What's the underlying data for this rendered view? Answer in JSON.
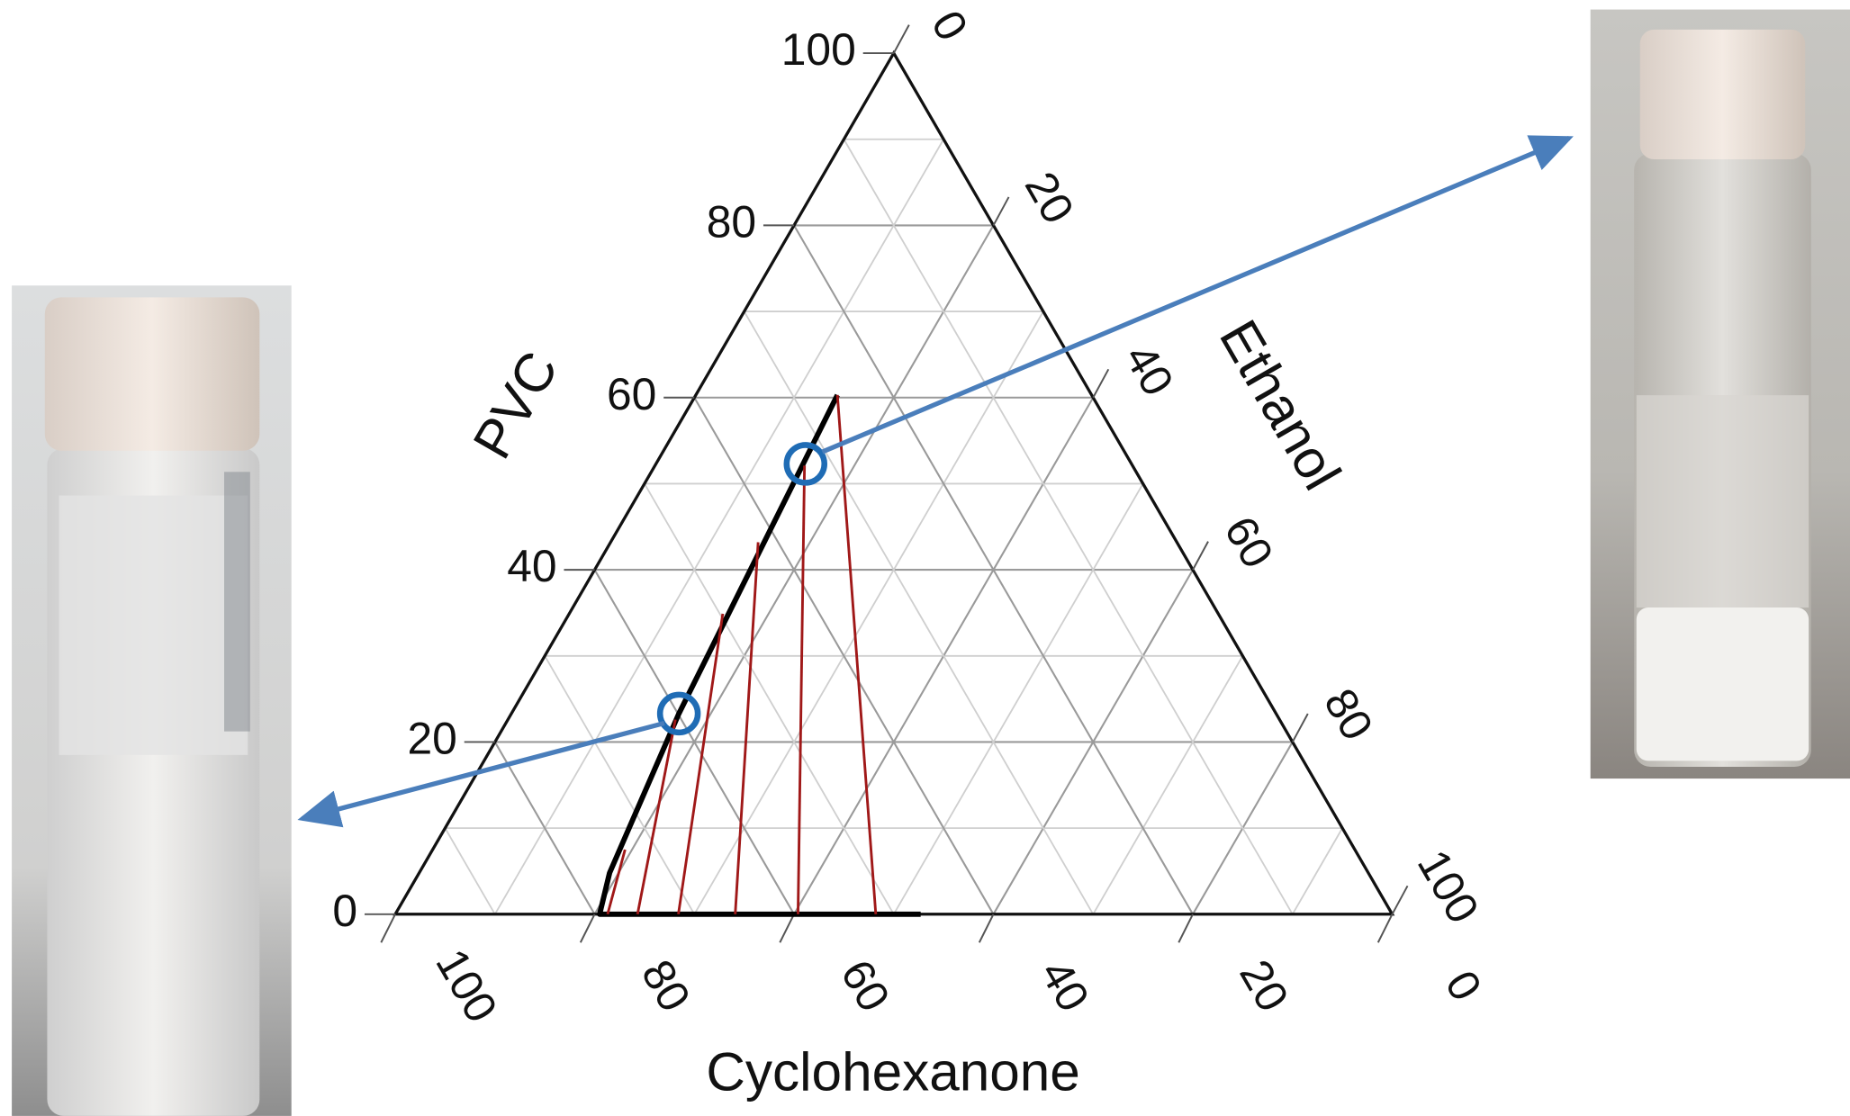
{
  "chart_data": {
    "type": "ternary",
    "grid": true,
    "axes": {
      "pvc": {
        "title": "PVC",
        "lim": [
          0,
          100
        ],
        "ticks": [
          0,
          20,
          40,
          60,
          80,
          100
        ]
      },
      "ethanol": {
        "title": "Ethanol",
        "lim": [
          0,
          100
        ],
        "ticks": [
          0,
          20,
          40,
          60,
          80,
          100
        ]
      },
      "cyclohexanone": {
        "title": "Cyclohexanone",
        "lim": [
          0,
          100
        ],
        "ticks": [
          100,
          80,
          60,
          40,
          20,
          0
        ]
      }
    },
    "series": [
      {
        "color": "#000000",
        "pvc": [
          0,
          0,
          4.8,
          23.3,
          60.3
        ],
        "ethanol": [
          52.7,
          20.5,
          19.1,
          16.8,
          14.2
        ],
        "cyclohexanone": [
          47.3,
          79.5,
          76.1,
          59.9,
          25.5
        ]
      },
      {
        "color": "#a01818",
        "pvc": [
          7.5,
          0
        ],
        "ethanol": [
          19.3,
          21.3
        ],
        "cyclohexanone": [
          73.2,
          78.7
        ]
      },
      {
        "color": "#a01818",
        "pvc": [
          22.6,
          0
        ],
        "ethanol": [
          16.8,
          24.3
        ],
        "cyclohexanone": [
          60.6,
          75.7
        ]
      },
      {
        "color": "#a01818",
        "pvc": [
          34.9,
          0
        ],
        "ethanol": [
          15.4,
          28.4
        ],
        "cyclohexanone": [
          49.7,
          71.6
        ]
      },
      {
        "color": "#a01818",
        "pvc": [
          43.2,
          0
        ],
        "ethanol": [
          14.8,
          34.1
        ],
        "cyclohexanone": [
          42.0,
          65.9
        ]
      },
      {
        "color": "#a01818",
        "pvc": [
          52.1,
          0
        ],
        "ethanol": [
          15.0,
          40.4
        ],
        "cyclohexanone": [
          32.9,
          59.6
        ]
      },
      {
        "color": "#a01818",
        "pvc": [
          60.3,
          0
        ],
        "ethanol": [
          14.2,
          48.2
        ],
        "cyclohexanone": [
          25.5,
          51.8
        ]
      }
    ],
    "highlights": {
      "color": "#1f6cb5",
      "pvc": [
        52.3,
        23.3
      ],
      "ethanol": [
        15.0,
        16.8
      ],
      "cyclohexanone": [
        32.7,
        59.9
      ]
    }
  }
}
